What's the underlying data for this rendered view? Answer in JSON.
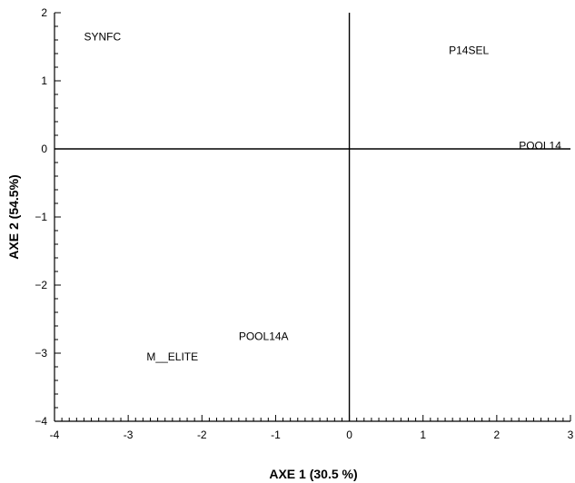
{
  "chart_data": {
    "type": "scatter",
    "title": "",
    "xlabel": "AXE 1  (30.5 %)",
    "ylabel": "AXE 2  (54.5%)",
    "xlim": [
      -4,
      3
    ],
    "ylim": [
      -4,
      2
    ],
    "xticks": [
      "-4",
      "-3",
      "-2",
      "-1",
      "0",
      "1",
      "2",
      "3"
    ],
    "yticks": [
      "2",
      "1",
      "0",
      "-1",
      "-2",
      "-3",
      "-4"
    ],
    "grid": false,
    "reference_lines": {
      "x": 0,
      "y": 0
    },
    "points": [
      {
        "label": "SYNFC",
        "x": -3.6,
        "y": 1.65
      },
      {
        "label": "P14SEL",
        "x": 1.35,
        "y": 1.45
      },
      {
        "label": "POOL14",
        "x": 2.3,
        "y": 0.05
      },
      {
        "label": "POOL14A",
        "x": -1.5,
        "y": -2.75
      },
      {
        "label": "M__ELITE",
        "x": -2.75,
        "y": -3.05
      }
    ]
  }
}
